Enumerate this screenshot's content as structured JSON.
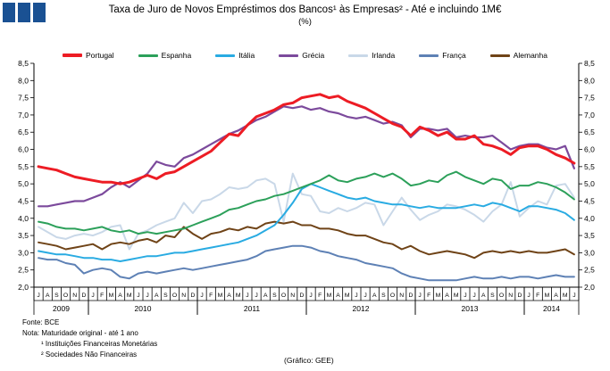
{
  "header": {
    "title": "Taxa de Juro de Novos Empréstimos dos Bancos¹ às Empresas² - Até e incluindo 1M€",
    "subtitle": "(%)"
  },
  "logo_colors": [
    "#1a5193",
    "#1a5193",
    "#1a5193"
  ],
  "legend": {
    "items": [
      {
        "label": "Portugal",
        "color": "#ed1c24"
      },
      {
        "label": "Espanha",
        "color": "#2ca05a"
      },
      {
        "label": "Itália",
        "color": "#29abe2"
      },
      {
        "label": "Grécia",
        "color": "#7c4a9c"
      },
      {
        "label": "Irlanda",
        "color": "#c9d8e8"
      },
      {
        "label": "França",
        "color": "#5e81b5"
      },
      {
        "label": "Alemanha",
        "color": "#6f4317"
      }
    ]
  },
  "chart_data": {
    "type": "line",
    "title": "Taxa de Juro de Novos Empréstimos dos Bancos às Empresas - Até e incluindo 1M€ (%)",
    "ylim": [
      2.0,
      8.5
    ],
    "ytick_step": 0.5,
    "grid": false,
    "legend_position": "top",
    "x_months": [
      "J",
      "A",
      "S",
      "O",
      "N",
      "D",
      "J",
      "F",
      "M",
      "A",
      "M",
      "J",
      "J",
      "A",
      "S",
      "O",
      "N",
      "D",
      "J",
      "F",
      "M",
      "A",
      "M",
      "J",
      "J",
      "A",
      "S",
      "O",
      "N",
      "D",
      "J",
      "F",
      "M",
      "A",
      "M",
      "J",
      "J",
      "A",
      "S",
      "O",
      "N",
      "D",
      "J",
      "F",
      "M",
      "A",
      "M",
      "J",
      "J",
      "A",
      "S",
      "O",
      "N",
      "D",
      "J",
      "F",
      "M",
      "A",
      "M",
      "J"
    ],
    "x_years": [
      {
        "label": "2009",
        "start": 0,
        "count": 6
      },
      {
        "label": "2010",
        "start": 6,
        "count": 12
      },
      {
        "label": "2011",
        "start": 18,
        "count": 12
      },
      {
        "label": "2012",
        "start": 30,
        "count": 12
      },
      {
        "label": "2013",
        "start": 42,
        "count": 12
      },
      {
        "label": "2014",
        "start": 54,
        "count": 6
      }
    ],
    "series": [
      {
        "name": "Irlanda",
        "color": "#c9d8e8",
        "width": 2,
        "values": [
          3.75,
          3.6,
          3.45,
          3.4,
          3.5,
          3.55,
          3.5,
          3.6,
          3.75,
          3.8,
          3.1,
          3.55,
          3.65,
          3.8,
          3.9,
          4.0,
          4.45,
          4.15,
          4.5,
          4.55,
          4.7,
          4.9,
          4.85,
          4.9,
          5.1,
          5.15,
          5.0,
          3.9,
          5.3,
          4.7,
          4.65,
          4.2,
          4.15,
          4.3,
          4.2,
          4.3,
          4.45,
          4.4,
          3.8,
          4.2,
          4.6,
          4.25,
          3.95,
          4.1,
          4.2,
          4.4,
          4.35,
          4.25,
          4.1,
          3.9,
          4.2,
          4.4,
          5.05,
          4.05,
          4.3,
          4.5,
          4.4,
          4.95,
          5.0,
          4.6
        ]
      },
      {
        "name": "França",
        "color": "#5e81b5",
        "width": 2,
        "values": [
          2.85,
          2.8,
          2.8,
          2.7,
          2.65,
          2.4,
          2.5,
          2.55,
          2.5,
          2.3,
          2.25,
          2.4,
          2.45,
          2.4,
          2.45,
          2.5,
          2.55,
          2.5,
          2.55,
          2.6,
          2.65,
          2.7,
          2.75,
          2.8,
          2.9,
          3.05,
          3.1,
          3.15,
          3.2,
          3.2,
          3.15,
          3.05,
          3.0,
          2.9,
          2.85,
          2.8,
          2.7,
          2.65,
          2.6,
          2.55,
          2.4,
          2.3,
          2.25,
          2.2,
          2.2,
          2.2,
          2.2,
          2.25,
          2.3,
          2.25,
          2.25,
          2.3,
          2.25,
          2.3,
          2.3,
          2.25,
          2.3,
          2.35,
          2.3,
          2.3
        ]
      },
      {
        "name": "Alemanha",
        "color": "#6f4317",
        "width": 2,
        "values": [
          3.3,
          3.25,
          3.2,
          3.1,
          3.15,
          3.2,
          3.25,
          3.1,
          3.25,
          3.3,
          3.25,
          3.35,
          3.4,
          3.3,
          3.5,
          3.45,
          3.75,
          3.55,
          3.4,
          3.55,
          3.6,
          3.7,
          3.65,
          3.75,
          3.7,
          3.85,
          3.9,
          3.85,
          3.9,
          3.8,
          3.8,
          3.7,
          3.7,
          3.65,
          3.55,
          3.5,
          3.5,
          3.4,
          3.3,
          3.25,
          3.1,
          3.2,
          3.05,
          2.95,
          3.0,
          3.05,
          3.0,
          2.95,
          2.85,
          3.0,
          3.05,
          3.0,
          3.05,
          3.0,
          3.05,
          3.0,
          3.0,
          3.05,
          3.1,
          2.95
        ]
      },
      {
        "name": "Itália",
        "color": "#29abe2",
        "width": 2,
        "values": [
          3.05,
          3.0,
          2.95,
          2.95,
          2.9,
          2.85,
          2.85,
          2.8,
          2.8,
          2.75,
          2.8,
          2.85,
          2.9,
          2.9,
          2.95,
          3.0,
          3.0,
          3.05,
          3.1,
          3.15,
          3.2,
          3.25,
          3.3,
          3.4,
          3.5,
          3.65,
          3.8,
          4.1,
          4.45,
          4.85,
          5.0,
          4.9,
          4.8,
          4.7,
          4.6,
          4.55,
          4.6,
          4.5,
          4.45,
          4.4,
          4.4,
          4.35,
          4.3,
          4.35,
          4.3,
          4.3,
          4.3,
          4.35,
          4.4,
          4.35,
          4.45,
          4.4,
          4.3,
          4.2,
          4.35,
          4.35,
          4.3,
          4.25,
          4.15,
          3.95
        ]
      },
      {
        "name": "Espanha",
        "color": "#2ca05a",
        "width": 2,
        "values": [
          3.9,
          3.85,
          3.75,
          3.7,
          3.7,
          3.65,
          3.7,
          3.75,
          3.65,
          3.6,
          3.65,
          3.55,
          3.6,
          3.55,
          3.6,
          3.65,
          3.7,
          3.8,
          3.9,
          4.0,
          4.1,
          4.25,
          4.3,
          4.4,
          4.5,
          4.55,
          4.65,
          4.7,
          4.8,
          4.9,
          5.0,
          5.1,
          5.25,
          5.1,
          5.05,
          5.15,
          5.2,
          5.3,
          5.2,
          5.3,
          5.15,
          4.95,
          5.0,
          5.1,
          5.05,
          5.25,
          5.35,
          5.2,
          5.1,
          5.0,
          5.15,
          5.1,
          4.85,
          4.95,
          4.95,
          5.05,
          5.0,
          4.9,
          4.75,
          4.55
        ]
      },
      {
        "name": "Grécia",
        "color": "#7c4a9c",
        "width": 2.2,
        "values": [
          4.35,
          4.35,
          4.4,
          4.45,
          4.5,
          4.5,
          4.6,
          4.7,
          4.9,
          5.05,
          4.9,
          5.1,
          5.3,
          5.65,
          5.55,
          5.5,
          5.75,
          5.85,
          6.0,
          6.15,
          6.3,
          6.45,
          6.55,
          6.7,
          6.85,
          6.95,
          7.1,
          7.25,
          7.2,
          7.25,
          7.15,
          7.2,
          7.1,
          7.05,
          6.95,
          6.9,
          6.95,
          6.85,
          6.75,
          6.8,
          6.7,
          6.35,
          6.6,
          6.6,
          6.55,
          6.6,
          6.35,
          6.4,
          6.35,
          6.35,
          6.4,
          6.2,
          6.0,
          6.1,
          6.15,
          6.15,
          6.05,
          6.0,
          6.1,
          5.45
        ]
      },
      {
        "name": "Portugal",
        "color": "#ed1c24",
        "width": 3,
        "values": [
          5.5,
          5.45,
          5.4,
          5.3,
          5.2,
          5.15,
          5.1,
          5.05,
          5.05,
          5.0,
          5.05,
          5.15,
          5.25,
          5.15,
          5.3,
          5.35,
          5.5,
          5.65,
          5.8,
          5.95,
          6.2,
          6.45,
          6.4,
          6.7,
          6.95,
          7.05,
          7.15,
          7.3,
          7.35,
          7.5,
          7.55,
          7.6,
          7.5,
          7.55,
          7.4,
          7.3,
          7.2,
          7.05,
          6.9,
          6.75,
          6.65,
          6.4,
          6.65,
          6.55,
          6.4,
          6.5,
          6.3,
          6.3,
          6.4,
          6.15,
          6.1,
          6.0,
          5.85,
          6.05,
          6.1,
          6.1,
          6.0,
          5.85,
          5.75,
          5.6
        ]
      }
    ]
  },
  "footer": {
    "fonte": "Fonte: BCE",
    "nota": "Nota: Maturidade original - até 1 ano",
    "note1": "¹ Instituições Financeiras Monetárias",
    "note2": "² Sociedades Não Financeiras",
    "credit": "(Gráfico: GEE)"
  }
}
